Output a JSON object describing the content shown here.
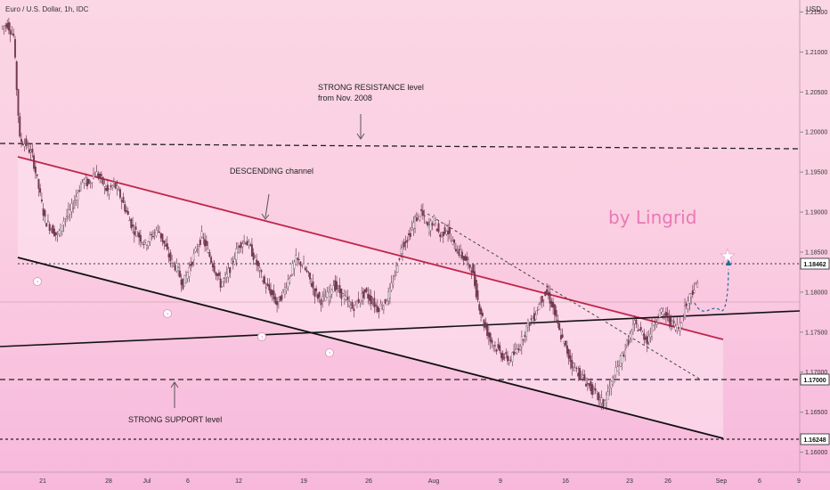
{
  "header": {
    "title": "Euro / U.S. Dollar, 1h, IDC",
    "currency": "USD"
  },
  "brand": "by Lingrid",
  "chart_data": {
    "type": "candlestick",
    "title": "Euro / U.S. Dollar, 1h, IDC",
    "ylim": [
      1.1575,
      1.2165
    ],
    "y_ticks": [
      "1.21500",
      "1.21000",
      "1.20500",
      "1.20000",
      "1.19500",
      "1.19000",
      "1.18500",
      "1.18000",
      "1.17500",
      "1.17000",
      "1.16500",
      "1.16000"
    ],
    "x_ticks": [
      "21",
      "28",
      "Jul",
      "6",
      "12",
      "19",
      "26",
      "Aug",
      "9",
      "16",
      "23",
      "26",
      "Sep",
      "6",
      "9"
    ],
    "price_tags": [
      "1.18462",
      "1.17000",
      "1.16248"
    ],
    "levels": [
      {
        "name": "strong-resistance",
        "value": 1.1992
      },
      {
        "name": "level-1-18462",
        "value": 1.18462
      },
      {
        "name": "strong-support",
        "value": 1.17
      },
      {
        "name": "level-1-16248",
        "value": 1.16248
      }
    ],
    "annotations": [
      {
        "text": "STRONG RESISTANCE level"
      },
      {
        "text": "from Nov. 2008"
      },
      {
        "text": "DESCENDING channel"
      },
      {
        "text": "STRONG SUPPORT level"
      }
    ],
    "price_path": [
      1.213,
      1.2135,
      1.212,
      1.199,
      1.1985,
      1.197,
      1.193,
      1.189,
      1.188,
      1.187,
      1.189,
      1.19,
      1.192,
      1.194,
      1.1935,
      1.195,
      1.194,
      1.1925,
      1.1935,
      1.192,
      1.19,
      1.188,
      1.187,
      1.186,
      1.187,
      1.188,
      1.186,
      1.184,
      1.183,
      1.181,
      1.183,
      1.185,
      1.187,
      1.185,
      1.183,
      1.181,
      1.182,
      1.184,
      1.186,
      1.1865,
      1.185,
      1.183,
      1.181,
      1.18,
      1.1785,
      1.18,
      1.182,
      1.184,
      1.1835,
      1.182,
      1.18,
      1.179,
      1.1795,
      1.181,
      1.18,
      1.179,
      1.178,
      1.179,
      1.18,
      1.179,
      1.178,
      1.1785,
      1.18,
      1.183,
      1.186,
      1.187,
      1.189,
      1.19,
      1.188,
      1.189,
      1.187,
      1.188,
      1.186,
      1.185,
      1.184,
      1.183,
      1.179,
      1.176,
      1.174,
      1.173,
      1.172,
      1.1715,
      1.1725,
      1.174,
      1.176,
      1.177,
      1.179,
      1.18,
      1.178,
      1.175,
      1.173,
      1.171,
      1.17,
      1.169,
      1.168,
      1.167,
      1.166,
      1.168,
      1.17,
      1.172,
      1.174,
      1.176,
      1.175,
      1.174,
      1.176,
      1.1775,
      1.177,
      1.176,
      1.1755,
      1.178,
      1.18,
      1.181
    ]
  }
}
